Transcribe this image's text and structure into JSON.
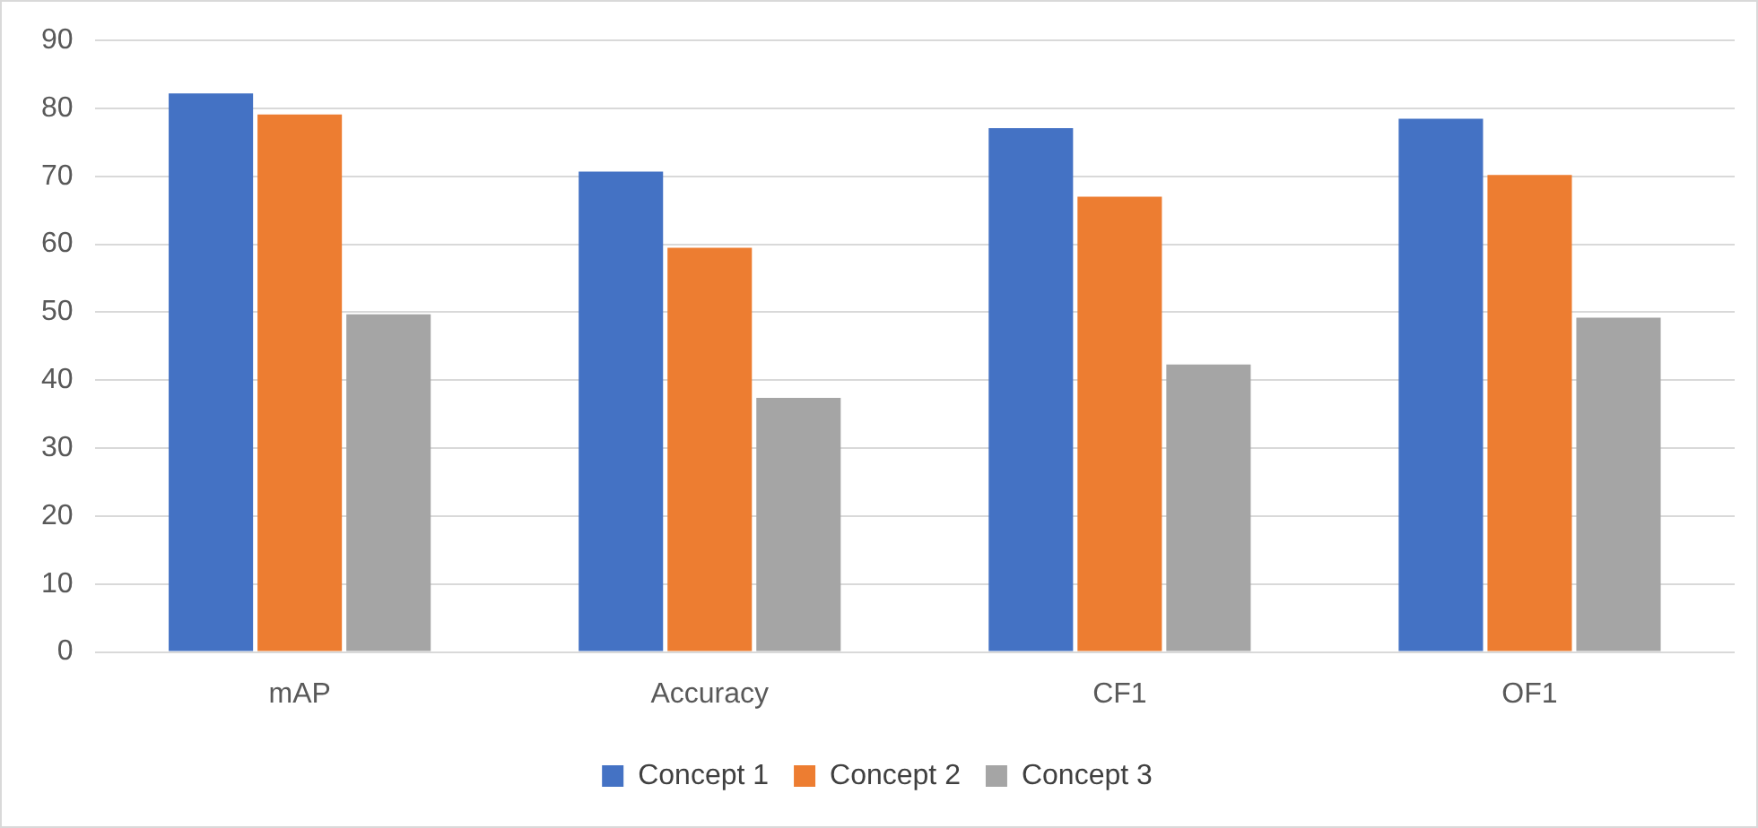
{
  "chart_data": {
    "type": "bar",
    "categories": [
      "mAP",
      "Accuracy",
      "CF1",
      "OF1"
    ],
    "series": [
      {
        "name": "Concept 1",
        "color": "#4472c4",
        "values": [
          82.2,
          70.7,
          77.1,
          78.5
        ]
      },
      {
        "name": "Concept 2",
        "color": "#ed7d31",
        "values": [
          79.1,
          59.5,
          67.0,
          70.2
        ]
      },
      {
        "name": "Concept 3",
        "color": "#a5a5a5",
        "values": [
          49.7,
          37.4,
          42.3,
          49.2
        ]
      }
    ],
    "ylim": [
      0,
      90
    ],
    "yticks": [
      0,
      10,
      20,
      30,
      40,
      50,
      60,
      70,
      80,
      90
    ],
    "grid": "y",
    "legend": "bottom"
  }
}
